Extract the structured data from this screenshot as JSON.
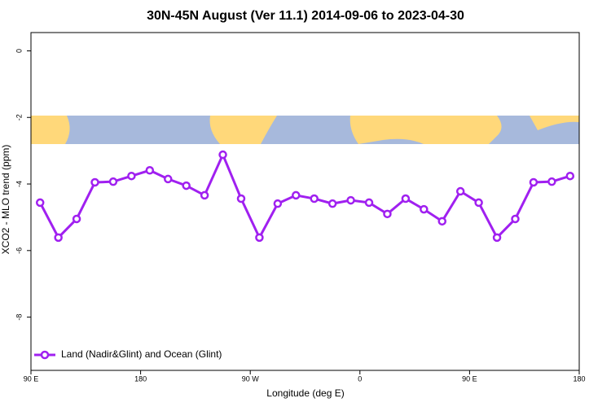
{
  "chart_data": {
    "type": "line",
    "title": "30N-45N August (Ver 11.1)   2014-09-06 to 2023-04-30",
    "x_label": "Longitude (deg E)",
    "y_label": "XCO2 - MLO trend (ppm)",
    "x": [
      97.5,
      112.5,
      127.5,
      142.5,
      157.5,
      172.5,
      187.5,
      202.5,
      217.5,
      232.5,
      247.5,
      262.5,
      277.5,
      292.5,
      307.5,
      322.5,
      337.5,
      352.5,
      367.5,
      382.5,
      397.5,
      412.5,
      427.5,
      442.5,
      457.5,
      472.5,
      487.5,
      502.5,
      517.5,
      532.5
    ],
    "series": [
      {
        "name": "Land (Nadir&Glint) and Ocean (Glint)",
        "color": "#a020f0",
        "values": [
          -4.56,
          -5.61,
          -5.05,
          -3.95,
          -3.93,
          -3.76,
          -3.59,
          -3.85,
          -4.05,
          -4.34,
          -3.12,
          -4.44,
          -5.61,
          -4.59,
          -4.34,
          -4.44,
          -4.59,
          -4.49,
          -4.56,
          -4.9,
          -4.44,
          -4.76,
          -5.12,
          -4.22,
          -4.56,
          -5.61,
          -5.05,
          -3.95,
          -3.93,
          -3.76
        ]
      }
    ],
    "xlim": [
      90,
      540
    ],
    "xticks": [
      {
        "value": 90,
        "label": "90 E"
      },
      180,
      {
        "value": 270,
        "label": "90 W"
      },
      {
        "value": 360,
        "label": "0"
      },
      {
        "value": 450,
        "label": "90 E"
      },
      {
        "value": 540,
        "label": "180"
      }
    ],
    "ylim": [
      -9.6,
      0.55
    ],
    "yticks": [
      0,
      -2,
      -4,
      -6,
      -8
    ],
    "legend": "bottom-left"
  }
}
